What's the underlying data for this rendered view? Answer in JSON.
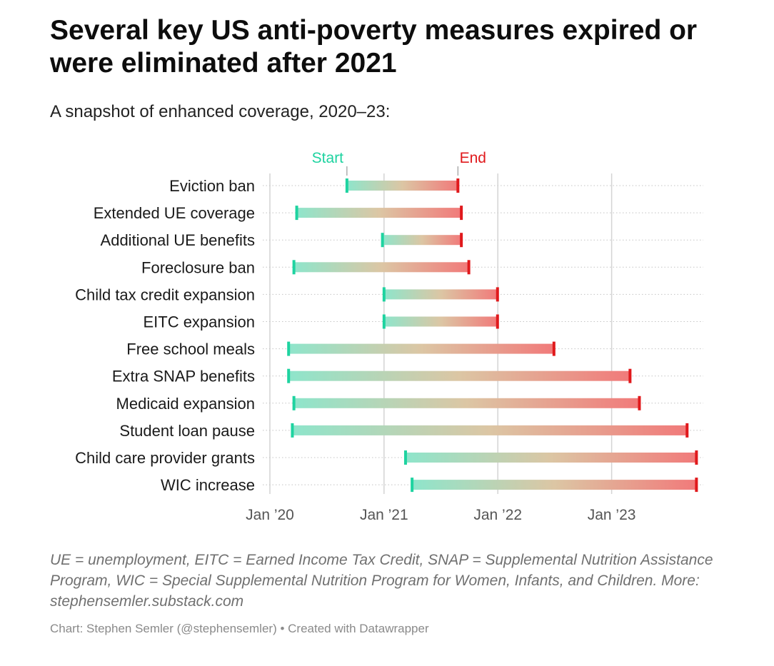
{
  "title": "Several key US anti-poverty measures expired or were eliminated after 2021",
  "subtitle": "A snapshot of enhanced coverage, 2020–23:",
  "notes": "UE = unemployment, EITC = Earned Income Tax Credit, SNAP = Supplemental Nutrition Assistance Program, WIC = Special Supplemental Nutrition Program for Women, Infants, and Children. More: stephensemler.substack.com",
  "credit": "Chart: Stephen Semler (@stephensemler) • Created with Datawrapper",
  "chart_data": {
    "type": "range-bar",
    "legend": {
      "start": "Start",
      "end": "End"
    },
    "colors": {
      "start": "#1ed3a0",
      "end": "#e0191c",
      "grid": "#d4d4d4",
      "label": "#1a1a1a",
      "axis_label": "#555555"
    },
    "x_range": [
      "2020-01-01",
      "2023-10-01"
    ],
    "x_ticks": [
      {
        "date": "2020-01-01",
        "label": "Jan ’20"
      },
      {
        "date": "2021-01-01",
        "label": "Jan ’21"
      },
      {
        "date": "2022-01-01",
        "label": "Jan ’22"
      },
      {
        "date": "2023-01-01",
        "label": "Jan ’23"
      }
    ],
    "rows": [
      {
        "label": "Eviction ban",
        "start": "2020-09-04",
        "end": "2021-08-26"
      },
      {
        "label": "Extended UE coverage",
        "start": "2020-03-27",
        "end": "2021-09-06"
      },
      {
        "label": "Additional UE benefits",
        "start": "2020-12-27",
        "end": "2021-09-06"
      },
      {
        "label": "Foreclosure ban",
        "start": "2020-03-18",
        "end": "2021-09-30"
      },
      {
        "label": "Child tax credit expansion",
        "start": "2021-01-01",
        "end": "2021-12-31"
      },
      {
        "label": "EITC expansion",
        "start": "2021-01-01",
        "end": "2021-12-31"
      },
      {
        "label": "Free school meals",
        "start": "2020-03-01",
        "end": "2022-06-30"
      },
      {
        "label": "Extra SNAP benefits",
        "start": "2020-03-01",
        "end": "2023-03-01"
      },
      {
        "label": "Medicaid expansion",
        "start": "2020-03-18",
        "end": "2023-03-31"
      },
      {
        "label": "Student loan pause",
        "start": "2020-03-13",
        "end": "2023-08-31"
      },
      {
        "label": "Child care provider grants",
        "start": "2021-03-11",
        "end": "2023-09-30"
      },
      {
        "label": "WIC increase",
        "start": "2021-04-01",
        "end": "2023-09-30"
      }
    ]
  }
}
